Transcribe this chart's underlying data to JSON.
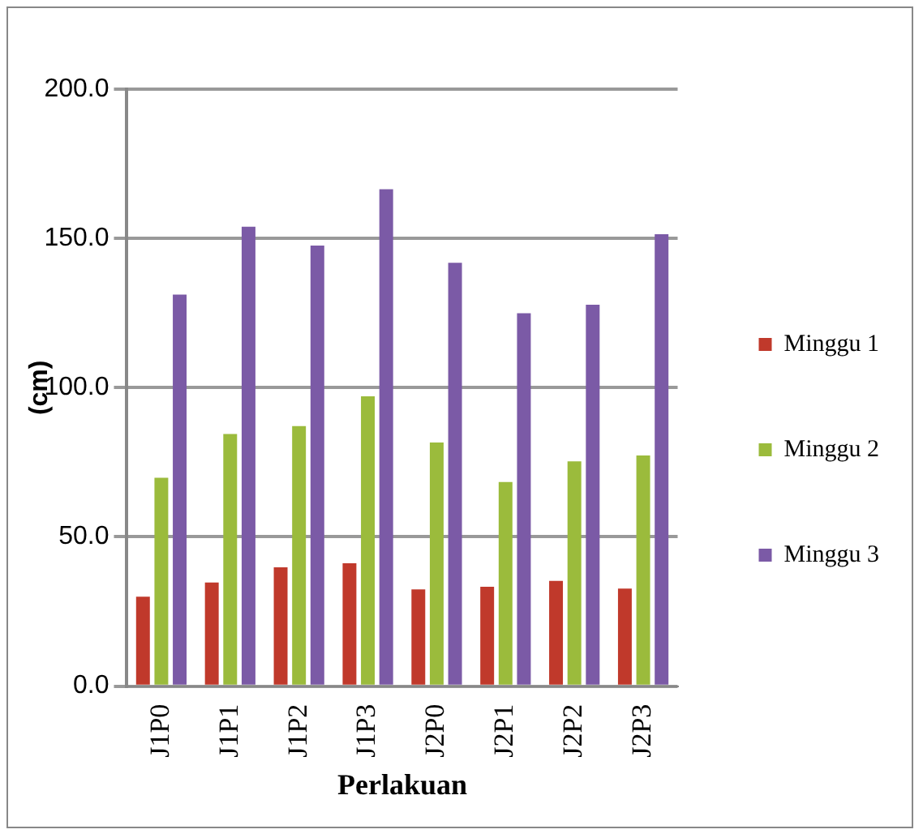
{
  "chart_data": {
    "type": "bar",
    "xlabel": "Perlakuan",
    "ylabel": "(cm)",
    "categories": [
      "J1P0",
      "J1P1",
      "J1P2",
      "J1P3",
      "J2P0",
      "J2P1",
      "J2P2",
      "J2P3"
    ],
    "series": [
      {
        "name": "Minggu 1",
        "color": "#c0392b",
        "values": [
          30.0,
          34.7,
          39.8,
          41.2,
          32.4,
          33.3,
          35.3,
          32.7
        ]
      },
      {
        "name": "Minggu 2",
        "color": "#9bbb3c",
        "values": [
          69.8,
          84.5,
          87.1,
          97.1,
          81.6,
          68.4,
          75.3,
          77.3
        ]
      },
      {
        "name": "Minggu 3",
        "color": "#7b5aa6",
        "values": [
          131.2,
          153.9,
          147.6,
          166.5,
          141.8,
          124.9,
          127.8,
          151.4
        ]
      }
    ],
    "ylim": [
      0,
      200
    ],
    "yticks": [
      {
        "value": 0,
        "label": "0.0"
      },
      {
        "value": 50,
        "label": "50.0"
      },
      {
        "value": 100,
        "label": "100.0"
      },
      {
        "value": 150,
        "label": "150.0"
      },
      {
        "value": 200,
        "label": "200.0"
      }
    ],
    "grid": "y",
    "legend": "right"
  }
}
